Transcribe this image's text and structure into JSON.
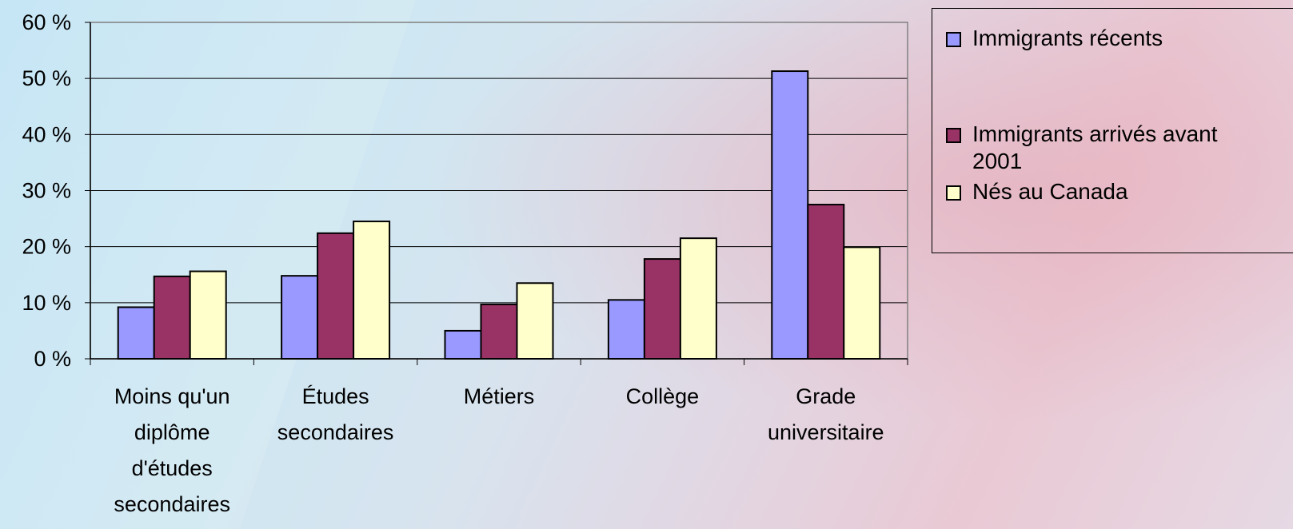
{
  "chart_data": {
    "type": "bar",
    "categories": [
      "Moins qu'un diplôme d'études secondaires",
      "Études secondaires",
      "Métiers",
      "Collège",
      "Grade universitaire"
    ],
    "category_lines": [
      [
        "Moins qu'un",
        "diplôme",
        "d'études",
        "secondaires"
      ],
      [
        "Études",
        "secondaires"
      ],
      [
        "Métiers"
      ],
      [
        "Collège"
      ],
      [
        "Grade",
        "universitaire"
      ]
    ],
    "series": [
      {
        "name": "Immigrants récents",
        "color": "#9999ff",
        "values": [
          9.2,
          14.8,
          5.0,
          10.5,
          51.3
        ]
      },
      {
        "name": "Immigrants arrivés avant 2001",
        "color": "#993366",
        "values": [
          14.7,
          22.4,
          9.7,
          17.8,
          27.5
        ]
      },
      {
        "name": "Nés au Canada",
        "color": "#ffffcc",
        "values": [
          15.6,
          24.5,
          13.5,
          21.5,
          19.9
        ]
      }
    ],
    "legend_lines": [
      [
        "Immigrants récents"
      ],
      [
        "Immigrants arrivés avant",
        "2001"
      ],
      [
        "Nés au Canada"
      ]
    ],
    "ylim": [
      0,
      60
    ],
    "yticks": [
      0,
      10,
      20,
      30,
      40,
      50,
      60
    ],
    "ytick_labels": [
      "0 %",
      "10 %",
      "20 %",
      "30 %",
      "40 %",
      "50 %",
      "60 %"
    ],
    "grid": true,
    "legend_position": "right"
  }
}
